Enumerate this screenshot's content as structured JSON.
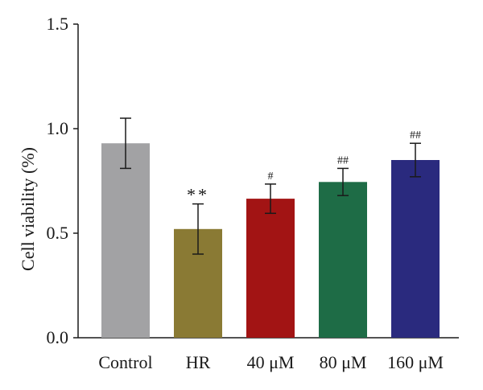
{
  "chart_data": {
    "type": "bar",
    "ylabel": "Cell viability (%)",
    "ylim": [
      0,
      1.5
    ],
    "yticks": [
      "0.0",
      "0.5",
      "1.0",
      "1.5"
    ],
    "categories": [
      "Control",
      "HR",
      "40 μM",
      "80 μM",
      "160 μM"
    ],
    "values": [
      0.93,
      0.52,
      0.665,
      0.745,
      0.85
    ],
    "error": [
      0.12,
      0.12,
      0.07,
      0.065,
      0.08
    ],
    "annotations": [
      "",
      "**",
      "#",
      "##",
      "##"
    ],
    "colors": [
      "#a2a2a4",
      "#8a7a34",
      "#a21414",
      "#1e6c46",
      "#2a2a7e"
    ],
    "grid": false,
    "legend": "none"
  }
}
